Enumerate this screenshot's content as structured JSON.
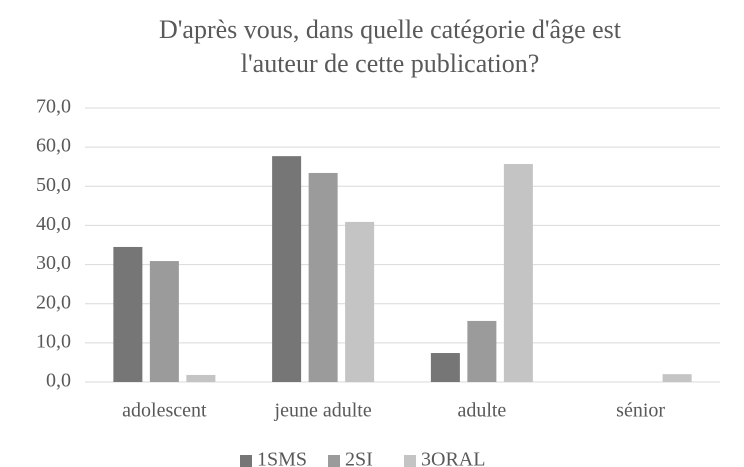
{
  "chart_data": {
    "type": "bar",
    "title": [
      "D'après vous, dans quelle catégorie d'âge est",
      "l'auteur de cette publication?"
    ],
    "categories": [
      "adolescent",
      "jeune adulte",
      "adulte",
      "sénior"
    ],
    "series": [
      {
        "name": "1SMS",
        "color": "#767676",
        "values": [
          34.5,
          57.7,
          7.4,
          0
        ]
      },
      {
        "name": "2SI",
        "color": "#9b9b9b",
        "values": [
          30.9,
          53.4,
          15.6,
          0
        ]
      },
      {
        "name": "3ORAL",
        "color": "#c4c4c4",
        "values": [
          1.8,
          40.9,
          55.7,
          2.0
        ]
      }
    ],
    "ylim": [
      0,
      70
    ],
    "yticks": [
      {
        "value": 0,
        "label": "0,0"
      },
      {
        "value": 10,
        "label": "10,0"
      },
      {
        "value": 20,
        "label": "20,0"
      },
      {
        "value": 30,
        "label": "30,0"
      },
      {
        "value": 40,
        "label": "40,0"
      },
      {
        "value": 50,
        "label": "50,0"
      },
      {
        "value": 60,
        "label": "60,0"
      },
      {
        "value": 70,
        "label": "70,0"
      }
    ],
    "grid": true,
    "legend": "bottom"
  }
}
